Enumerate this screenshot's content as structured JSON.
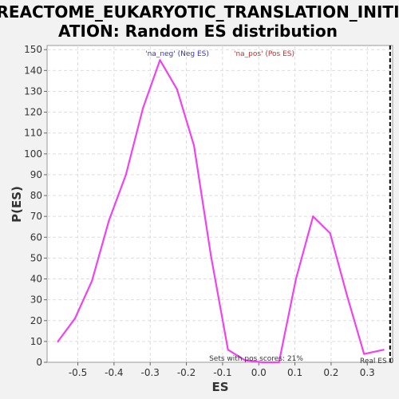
{
  "chart_data": {
    "type": "line",
    "title_line1": "REACTOME_EUKARYOTIC_TRANSLATION_INITI",
    "title_line2": "ATION: Random ES distribution",
    "xlabel": "ES",
    "ylabel": "P(ES)",
    "xlim": [
      -0.585,
      0.37
    ],
    "ylim": [
      0,
      152
    ],
    "x_ticks": [
      -0.5,
      -0.4,
      -0.3,
      -0.2,
      -0.1,
      0.0,
      0.1,
      0.2,
      0.3
    ],
    "x_tick_labels": [
      "-0.5",
      "-0.4",
      "-0.3",
      "-0.2",
      "-0.1",
      "0.0",
      "0.1",
      "0.2",
      "0.3"
    ],
    "y_ticks": [
      0,
      10,
      20,
      30,
      40,
      50,
      60,
      70,
      80,
      90,
      100,
      110,
      120,
      130,
      140,
      150
    ],
    "y_tick_labels": [
      "0",
      "10",
      "20",
      "30",
      "40",
      "50",
      "60",
      "70",
      "80",
      "90",
      "100",
      "110",
      "120",
      "130",
      "140",
      "150"
    ],
    "grid": true,
    "series": [
      {
        "color": "#ee44ee",
        "x": [
          -0.555,
          -0.508,
          -0.461,
          -0.414,
          -0.367,
          -0.32,
          -0.273,
          -0.226,
          -0.179,
          -0.132,
          -0.085,
          -0.038,
          0.009,
          0.056,
          0.103,
          0.15,
          0.197,
          0.244,
          0.291,
          0.345
        ],
        "y": [
          10,
          21,
          39,
          68,
          90,
          122,
          145,
          131,
          104,
          51,
          6,
          1,
          0,
          0,
          40,
          70,
          62,
          32,
          4,
          6
        ]
      }
    ],
    "legend": [
      {
        "text": "'na_neg' (Neg ES)",
        "color": "#3333cc"
      },
      {
        "text": "'na_pos' (Pos ES)",
        "color": "#dd2222"
      }
    ],
    "legend_placement": "top-center",
    "real_es": {
      "x": 0.363,
      "label": "Real ES 0",
      "color": "#000000"
    },
    "annotation": "Sets with pos scores: 21%"
  }
}
